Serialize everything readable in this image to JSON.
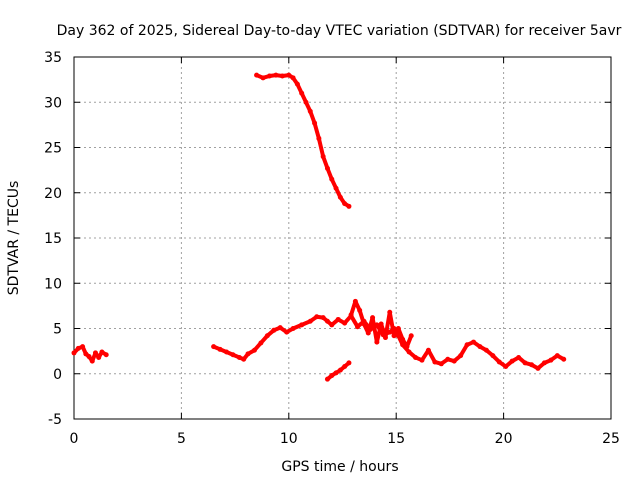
{
  "chart_data": {
    "type": "scatter",
    "title": "Day 362 of 2025, Sidereal Day-to-day VTEC variation (SDTVAR) for receiver 5avr",
    "xlabel": "GPS time / hours",
    "ylabel": "SDTVAR / TECUs",
    "xlim": [
      0,
      25
    ],
    "ylim": [
      -5,
      35
    ],
    "xticks": [
      0,
      5,
      10,
      15,
      20,
      25
    ],
    "yticks": [
      -5,
      0,
      5,
      10,
      15,
      20,
      25,
      30,
      35
    ],
    "grid": true,
    "legend": "none",
    "series": [
      {
        "name": "segment-1",
        "color": "#ff0000",
        "x": [
          0.0,
          0.2,
          0.4,
          0.55,
          0.7,
          0.85,
          1.0,
          1.15,
          1.3,
          1.5
        ],
        "y": [
          2.3,
          2.8,
          3.0,
          2.2,
          1.9,
          1.4,
          2.3,
          1.8,
          2.4,
          2.1
        ]
      },
      {
        "name": "segment-2",
        "color": "#ff0000",
        "x": [
          6.5,
          6.8,
          7.1,
          7.4,
          7.7,
          7.9,
          8.1,
          8.4,
          8.7,
          9.0,
          9.3,
          9.6,
          9.9,
          10.2,
          10.6,
          11.0,
          11.3,
          11.6,
          11.8,
          12.0,
          12.3,
          12.6,
          12.9,
          13.2,
          13.5,
          13.8,
          14.1,
          14.4,
          14.7,
          14.9,
          15.1,
          15.3,
          15.6,
          15.9,
          16.2,
          16.5,
          16.8,
          17.1,
          17.4,
          17.7,
          18.0,
          18.3,
          18.6,
          18.9,
          19.2,
          19.5,
          19.8,
          20.1,
          20.4,
          20.7,
          21.0,
          21.3,
          21.6,
          21.9,
          22.2,
          22.5,
          22.8
        ],
        "y": [
          3.0,
          2.7,
          2.4,
          2.1,
          1.8,
          1.6,
          2.2,
          2.6,
          3.4,
          4.2,
          4.8,
          5.1,
          4.6,
          5.0,
          5.4,
          5.8,
          6.3,
          6.2,
          5.8,
          5.4,
          6.0,
          5.6,
          6.4,
          5.2,
          5.8,
          4.9,
          5.4,
          4.3,
          4.6,
          5.0,
          4.2,
          3.2,
          2.4,
          1.8,
          1.5,
          2.6,
          1.3,
          1.1,
          1.6,
          1.4,
          2.0,
          3.2,
          3.5,
          3.0,
          2.6,
          2.0,
          1.3,
          0.8,
          1.4,
          1.8,
          1.2,
          1.0,
          0.6,
          1.2,
          1.5,
          2.0,
          1.6
        ]
      },
      {
        "name": "segment-3",
        "color": "#ff0000",
        "x": [
          8.5,
          8.8,
          9.1,
          9.4,
          9.7,
          10.0,
          10.2,
          10.4,
          10.6,
          10.8,
          11.0,
          11.2,
          11.4,
          11.6,
          11.8,
          12.0,
          12.2,
          12.4,
          12.6,
          12.8
        ],
        "y": [
          33.0,
          32.7,
          32.9,
          33.0,
          32.9,
          33.0,
          32.7,
          32.0,
          31.0,
          30.0,
          29.0,
          27.7,
          26.0,
          24.0,
          22.7,
          21.5,
          20.5,
          19.5,
          18.8,
          18.5
        ]
      },
      {
        "name": "segment-4",
        "color": "#ff0000",
        "x": [
          11.8,
          12.0,
          12.2,
          12.4,
          12.6,
          12.8
        ],
        "y": [
          -0.6,
          -0.2,
          0.1,
          0.4,
          0.8,
          1.2
        ]
      },
      {
        "name": "segment-5",
        "color": "#ff0000",
        "x": [
          12.9,
          13.1,
          13.3,
          13.5,
          13.7,
          13.9,
          14.1,
          14.3,
          14.5,
          14.7,
          14.9,
          15.1,
          15.3,
          15.5,
          15.7
        ],
        "y": [
          6.5,
          8.0,
          7.0,
          5.5,
          4.5,
          6.2,
          3.5,
          5.5,
          4.0,
          6.8,
          4.2,
          5.0,
          3.8,
          3.0,
          4.2
        ]
      }
    ]
  }
}
